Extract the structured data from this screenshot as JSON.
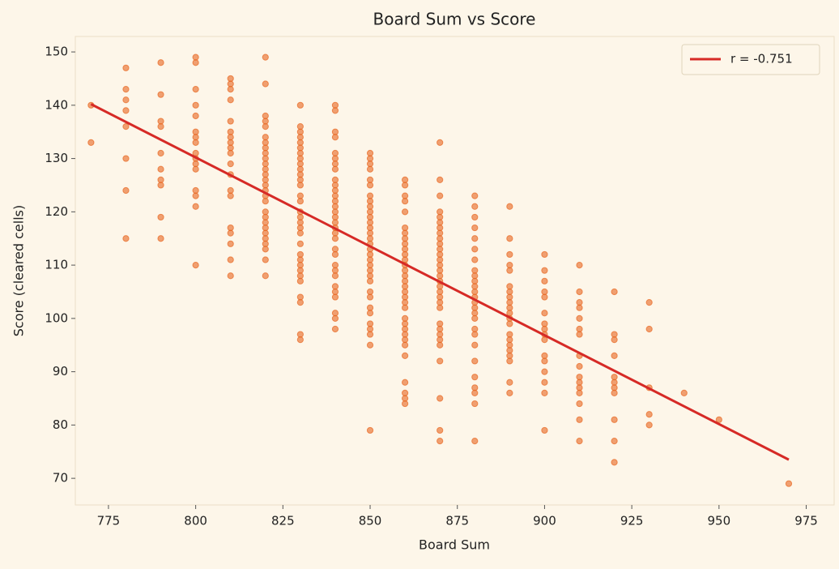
{
  "chart_data": {
    "type": "scatter",
    "title": "Board Sum vs Score",
    "x_label": "Board Sum",
    "y_label": "Score (cleared cells)",
    "xlim": [
      765.5,
      983
    ],
    "ylim": [
      65,
      152.9
    ],
    "xticks": [
      775,
      800,
      825,
      850,
      875,
      900,
      925,
      950,
      975
    ],
    "yticks": [
      70,
      80,
      90,
      100,
      110,
      120,
      130,
      140,
      150
    ],
    "legend": "upper right",
    "series": [
      {
        "type": "scatter",
        "color": "#e8661f",
        "x": [
          770,
          770,
          780,
          780,
          780,
          780,
          780,
          780,
          780,
          780,
          790,
          790,
          790,
          790,
          790,
          790,
          790,
          790,
          790,
          790,
          800,
          800,
          800,
          800,
          800,
          800,
          800,
          800,
          800,
          800,
          800,
          800,
          800,
          800,
          800,
          800,
          810,
          810,
          810,
          810,
          810,
          810,
          810,
          810,
          810,
          810,
          810,
          810,
          810,
          810,
          810,
          810,
          810,
          810,
          810,
          820,
          820,
          820,
          820,
          820,
          820,
          820,
          820,
          820,
          820,
          820,
          820,
          820,
          820,
          820,
          820,
          820,
          820,
          820,
          820,
          820,
          820,
          820,
          820,
          820,
          820,
          820,
          820,
          830,
          830,
          830,
          830,
          830,
          830,
          830,
          830,
          830,
          830,
          830,
          830,
          830,
          830,
          830,
          830,
          830,
          830,
          830,
          830,
          830,
          830,
          830,
          830,
          830,
          830,
          830,
          830,
          830,
          830,
          830,
          840,
          840,
          840,
          840,
          840,
          840,
          840,
          840,
          840,
          840,
          840,
          840,
          840,
          840,
          840,
          840,
          840,
          840,
          840,
          840,
          840,
          840,
          840,
          840,
          840,
          840,
          840,
          840,
          840,
          840,
          840,
          850,
          850,
          850,
          850,
          850,
          850,
          850,
          850,
          850,
          850,
          850,
          850,
          850,
          850,
          850,
          850,
          850,
          850,
          850,
          850,
          850,
          850,
          850,
          850,
          850,
          850,
          850,
          850,
          850,
          850,
          850,
          850,
          860,
          860,
          860,
          860,
          860,
          860,
          860,
          860,
          860,
          860,
          860,
          860,
          860,
          860,
          860,
          860,
          860,
          860,
          860,
          860,
          860,
          860,
          860,
          860,
          860,
          860,
          860,
          860,
          860,
          860,
          860,
          860,
          870,
          870,
          870,
          870,
          870,
          870,
          870,
          870,
          870,
          870,
          870,
          870,
          870,
          870,
          870,
          870,
          870,
          870,
          870,
          870,
          870,
          870,
          870,
          870,
          870,
          870,
          870,
          870,
          870,
          870,
          870,
          880,
          880,
          880,
          880,
          880,
          880,
          880,
          880,
          880,
          880,
          880,
          880,
          880,
          880,
          880,
          880,
          880,
          880,
          880,
          880,
          880,
          880,
          880,
          880,
          880,
          880,
          890,
          890,
          890,
          890,
          890,
          890,
          890,
          890,
          890,
          890,
          890,
          890,
          890,
          890,
          890,
          890,
          890,
          890,
          890,
          890,
          890,
          900,
          900,
          900,
          900,
          900,
          900,
          900,
          900,
          900,
          900,
          900,
          900,
          900,
          900,
          900,
          900,
          910,
          910,
          910,
          910,
          910,
          910,
          910,
          910,
          910,
          910,
          910,
          910,
          910,
          910,
          910,
          910,
          920,
          920,
          920,
          920,
          920,
          920,
          920,
          920,
          920,
          920,
          920,
          930,
          930,
          930,
          930,
          930,
          940,
          950,
          970
        ],
        "values": [
          140,
          133,
          147,
          143,
          141,
          139,
          136,
          130,
          124,
          115,
          148,
          142,
          137,
          136,
          131,
          128,
          126,
          125,
          119,
          115,
          149,
          148,
          143,
          140,
          138,
          135,
          134,
          133,
          131,
          130,
          129,
          128,
          124,
          123,
          121,
          110,
          145,
          144,
          143,
          141,
          137,
          135,
          134,
          133,
          132,
          131,
          129,
          127,
          124,
          123,
          117,
          116,
          114,
          111,
          108,
          149,
          144,
          138,
          137,
          136,
          134,
          133,
          132,
          131,
          130,
          129,
          128,
          127,
          126,
          125,
          124,
          123,
          122,
          120,
          119,
          118,
          117,
          116,
          115,
          114,
          113,
          111,
          108,
          140,
          136,
          135,
          134,
          133,
          132,
          131,
          130,
          129,
          128,
          127,
          126,
          125,
          123,
          122,
          120,
          119,
          118,
          117,
          116,
          114,
          112,
          111,
          110,
          109,
          108,
          107,
          104,
          103,
          97,
          96,
          140,
          139,
          135,
          134,
          131,
          130,
          129,
          128,
          126,
          125,
          124,
          123,
          122,
          121,
          120,
          119,
          118,
          117,
          116,
          115,
          113,
          112,
          110,
          109,
          108,
          106,
          105,
          104,
          101,
          100,
          98,
          131,
          130,
          129,
          128,
          126,
          125,
          123,
          122,
          121,
          120,
          119,
          118,
          117,
          116,
          115,
          114,
          113,
          112,
          111,
          110,
          109,
          108,
          107,
          105,
          104,
          102,
          101,
          99,
          98,
          97,
          95,
          79,
          126,
          125,
          123,
          122,
          120,
          117,
          116,
          115,
          114,
          113,
          112,
          111,
          110,
          109,
          108,
          107,
          106,
          105,
          104,
          103,
          102,
          100,
          99,
          98,
          97,
          96,
          95,
          93,
          88,
          86,
          85,
          84,
          133,
          126,
          123,
          120,
          119,
          118,
          117,
          116,
          115,
          114,
          113,
          112,
          111,
          110,
          109,
          108,
          107,
          106,
          105,
          104,
          103,
          102,
          99,
          98,
          97,
          96,
          95,
          92,
          85,
          79,
          77,
          123,
          121,
          119,
          117,
          115,
          113,
          111,
          109,
          108,
          107,
          106,
          105,
          104,
          103,
          102,
          101,
          100,
          98,
          97,
          95,
          92,
          89,
          87,
          86,
          84,
          77,
          121,
          115,
          112,
          110,
          109,
          106,
          105,
          104,
          103,
          102,
          101,
          100,
          99,
          97,
          96,
          95,
          94,
          93,
          92,
          88,
          86,
          112,
          109,
          107,
          105,
          104,
          101,
          99,
          98,
          97,
          96,
          93,
          92,
          90,
          88,
          86,
          79,
          110,
          105,
          103,
          102,
          100,
          98,
          97,
          93,
          91,
          89,
          88,
          87,
          86,
          84,
          81,
          77,
          105,
          97,
          96,
          93,
          89,
          88,
          87,
          86,
          81,
          77,
          73,
          103,
          98,
          87,
          82,
          80,
          86,
          81,
          69
        ]
      },
      {
        "type": "line",
        "name": "r = -0.751",
        "color": "#d62a26",
        "x": [
          770,
          970
        ],
        "values": [
          140.2,
          73.5
        ]
      }
    ]
  }
}
